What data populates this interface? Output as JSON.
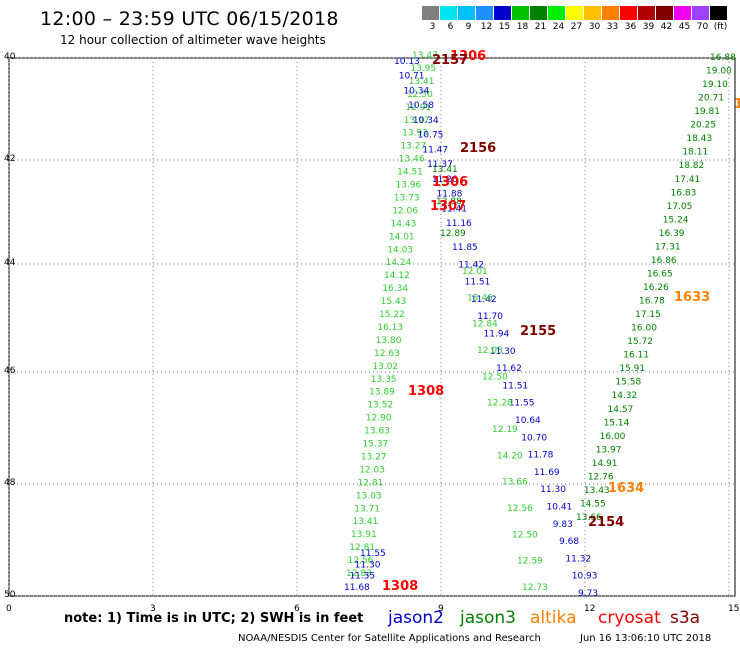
{
  "title": "12:00 – 23:59 UTC 06/15/2018",
  "subtitle": "12 hour collection of altimeter wave heights",
  "scale": {
    "values": [
      "3",
      "6",
      "9",
      "12",
      "15",
      "18",
      "21",
      "24",
      "27",
      "30",
      "33",
      "36",
      "39",
      "42",
      "45",
      "70",
      "(ft)"
    ],
    "colors": [
      "#808080",
      "#00e5ee",
      "#00bfff",
      "#1e90ff",
      "#0000cd",
      "#00c000",
      "#008000",
      "#00ee00",
      "#ffff00",
      "#ffc000",
      "#ff8000",
      "#ff0000",
      "#b00000",
      "#800000",
      "#f000f0",
      "#a040ff",
      "#000000"
    ]
  },
  "axes": {
    "y_labels": [
      "40",
      "42",
      "44",
      "46",
      "48",
      "50"
    ],
    "x_labels": [
      "0",
      "3",
      "6",
      "9",
      "12",
      "15"
    ]
  },
  "note": "note: 1) Time is in UTC; 2) SWH is in feet",
  "legend": [
    {
      "name": "jason2",
      "color": "#0000cd"
    },
    {
      "name": "jason3",
      "color": "#008000"
    },
    {
      "name": "altika",
      "color": "#ff8000"
    },
    {
      "name": "cryosat",
      "color": "#ff0000"
    },
    {
      "name": "s3a",
      "color": "#800000"
    }
  ],
  "credit": "NOAA/NESDIS Center for Satellite Applications and Research",
  "timestamp": "Jun 16 13:06:10 UTC 2018",
  "tracks": {
    "t1306a_pass_labels": [
      {
        "text": "1306",
        "color": "#ff0000"
      }
    ],
    "jason2_topleft": {
      "color": "#0000cd",
      "values": [
        "10.13",
        "10.71",
        "10.34",
        "10.58",
        "10.34",
        "10.75",
        "11.47",
        "11.37",
        "11.26",
        "11.88",
        "11.41",
        "11.16"
      ]
    },
    "green_left_upper": {
      "color": "#32cd32",
      "values": [
        "13.47",
        "13.95",
        "13.41",
        "12.50",
        "12.91",
        "13.97",
        "13.93",
        "13.27",
        "13.46",
        "14.51",
        "13.96",
        "13.73",
        "12.06",
        "14.43",
        "14.01",
        "14.03",
        "14.24",
        "14.12",
        "16.34",
        "15.43",
        "15.22",
        "16.13",
        "13.80",
        "12.63",
        "13.02",
        "13.35",
        "13.89",
        "13.52",
        "12.90",
        "13.63",
        "15.37",
        "13.27",
        "12.03",
        "12.81",
        "13.03",
        "13.71",
        "13.41",
        "13.91",
        "12.81",
        "12.56",
        "12.83"
      ]
    },
    "green_left_dark": {
      "color": "#008000",
      "values": [
        "13.41",
        "13.88",
        "12.89"
      ]
    },
    "blue_left_lower": {
      "color": "#0000cd",
      "values": [
        "11.55",
        "11.30",
        "11.35",
        "11.68"
      ]
    },
    "middle_blue": {
      "color": "#0000cd",
      "values": [
        "11.85",
        "11.42",
        "11.51",
        "11.42",
        "11.70",
        "11.94",
        "11.30",
        "11.62",
        "11.51",
        "11.55",
        "10.64",
        "10.70",
        "11.78",
        "11.69",
        "11.30",
        "10.41",
        "9.83",
        "9.68",
        "11.32",
        "10.93",
        "9.73"
      ]
    },
    "middle_green": {
      "color": "#32cd32",
      "values": [
        "12.01",
        "13.46",
        "12.84",
        "12.03",
        "12.50",
        "12.28",
        "12.19",
        "14.20",
        "13.66",
        "12.56",
        "12.50",
        "12.59",
        "12.73"
      ]
    },
    "right_green": {
      "color": "#008000",
      "values": [
        "16.88",
        "19.00",
        "19.10",
        "20.71",
        "19.81",
        "20.25",
        "18.43",
        "18.11",
        "18.82",
        "17.41",
        "16.83",
        "17.05",
        "15.24",
        "16.39",
        "17.31",
        "16.86",
        "16.65",
        "16.26",
        "16.78",
        "17.15",
        "16.00",
        "15.72",
        "16.11",
        "15.91",
        "15.58",
        "14.32",
        "14.57",
        "15.14",
        "16.00",
        "13.97",
        "14.91",
        "12.76",
        "13.43",
        "14.55",
        "13.66"
      ]
    },
    "pass_labels": [
      {
        "text": "1306",
        "color": "#ff0000"
      },
      {
        "text": "2157",
        "color": "#800000"
      },
      {
        "text": "2156",
        "color": "#800000"
      },
      {
        "text": "1306",
        "color": "#ff0000"
      },
      {
        "text": "1307",
        "color": "#ff0000"
      },
      {
        "text": "2155",
        "color": "#800000"
      },
      {
        "text": "1308",
        "color": "#ff0000"
      },
      {
        "text": "1308",
        "color": "#ff0000"
      },
      {
        "text": "2154",
        "color": "#800000"
      },
      {
        "text": "1633",
        "color": "#ff8000"
      },
      {
        "text": "1634",
        "color": "#ff8000"
      },
      {
        "text": "1",
        "color": "#ff8000"
      }
    ]
  }
}
